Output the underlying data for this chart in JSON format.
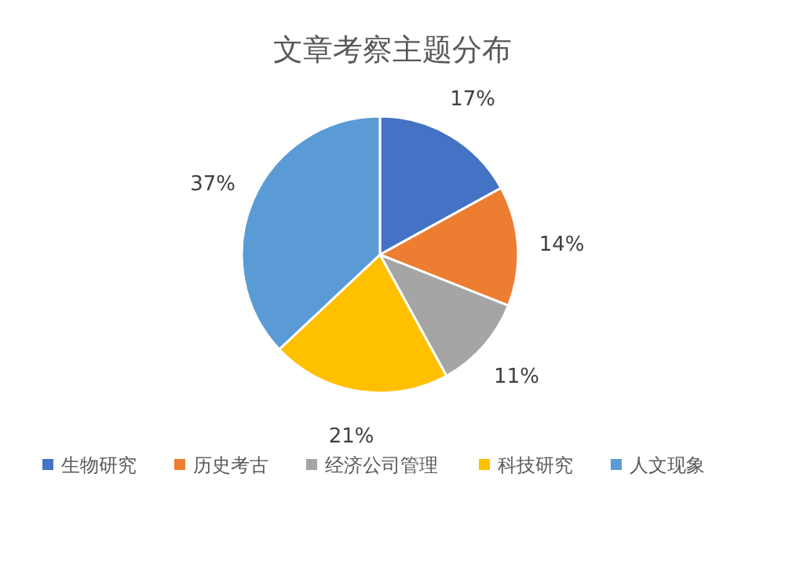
{
  "chart_data": {
    "type": "pie",
    "title": "文章考察主题分布",
    "categories": [
      "生物研究",
      "历史考古",
      "经济公司管理",
      "科技研究",
      "人文现象"
    ],
    "values": [
      17,
      14,
      11,
      21,
      37
    ],
    "value_labels": [
      "17%",
      "14%",
      "11%",
      "21%",
      "37%"
    ],
    "colors": [
      "#4472c4",
      "#ed7d31",
      "#a5a5a5",
      "#ffc000",
      "#5b9bd5"
    ],
    "legend": "bottom"
  }
}
